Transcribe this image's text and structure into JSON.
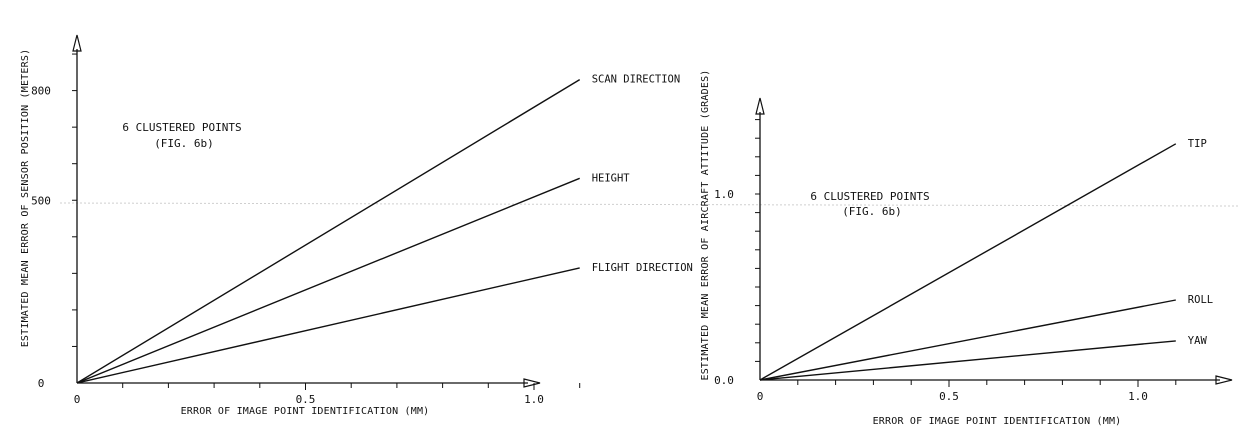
{
  "chart_data": [
    {
      "type": "line",
      "xlabel": "ERROR OF IMAGE POINT IDENTIFICATION (MM)",
      "ylabel": "ESTIMATED MEAN ERROR OF SENSOR POSITION (METERS)",
      "xlim": [
        0,
        1.25
      ],
      "ylim": [
        0,
        1000
      ],
      "x_ticks": [
        0,
        0.5,
        1.0
      ],
      "x_tick_labels": [
        "0",
        "0.5",
        "1.0"
      ],
      "y_ticks": [
        0,
        500,
        800
      ],
      "y_tick_labels": [
        "0",
        "500",
        "800"
      ],
      "grid": "none",
      "annotation": [
        "6 CLUSTERED POINTS",
        "(FIG. 6b)"
      ],
      "series": [
        {
          "name": "SCAN DIRECTION",
          "x": [
            0,
            1.1
          ],
          "y": [
            0,
            830
          ]
        },
        {
          "name": "HEIGHT",
          "x": [
            0,
            1.1
          ],
          "y": [
            0,
            560
          ]
        },
        {
          "name": "FLIGHT DIRECTION",
          "x": [
            0,
            1.1
          ],
          "y": [
            0,
            315
          ]
        }
      ]
    },
    {
      "type": "line",
      "xlabel": "ERROR OF IMAGE POINT IDENTIFICATION (MM)",
      "ylabel": "ESTIMATED MEAN ERROR OF AIRCRAFT ATTITUDE (GRADES)",
      "xlim": [
        0,
        1.25
      ],
      "ylim": [
        0,
        1.5
      ],
      "x_ticks": [
        0,
        0.5,
        1.0
      ],
      "x_tick_labels": [
        "0",
        "0.5",
        "1.0"
      ],
      "y_ticks": [
        0,
        1.0
      ],
      "y_tick_labels": [
        "0.0",
        "1.0"
      ],
      "grid": "none",
      "annotation": [
        "6 CLUSTERED POINTS",
        "(FIG. 6b)"
      ],
      "series": [
        {
          "name": "TIP",
          "x": [
            0,
            1.1
          ],
          "y": [
            0,
            1.27
          ]
        },
        {
          "name": "ROLL",
          "x": [
            0,
            1.1
          ],
          "y": [
            0,
            0.43
          ]
        },
        {
          "name": "YAW",
          "x": [
            0,
            1.1
          ],
          "y": [
            0,
            0.21
          ]
        }
      ]
    }
  ]
}
